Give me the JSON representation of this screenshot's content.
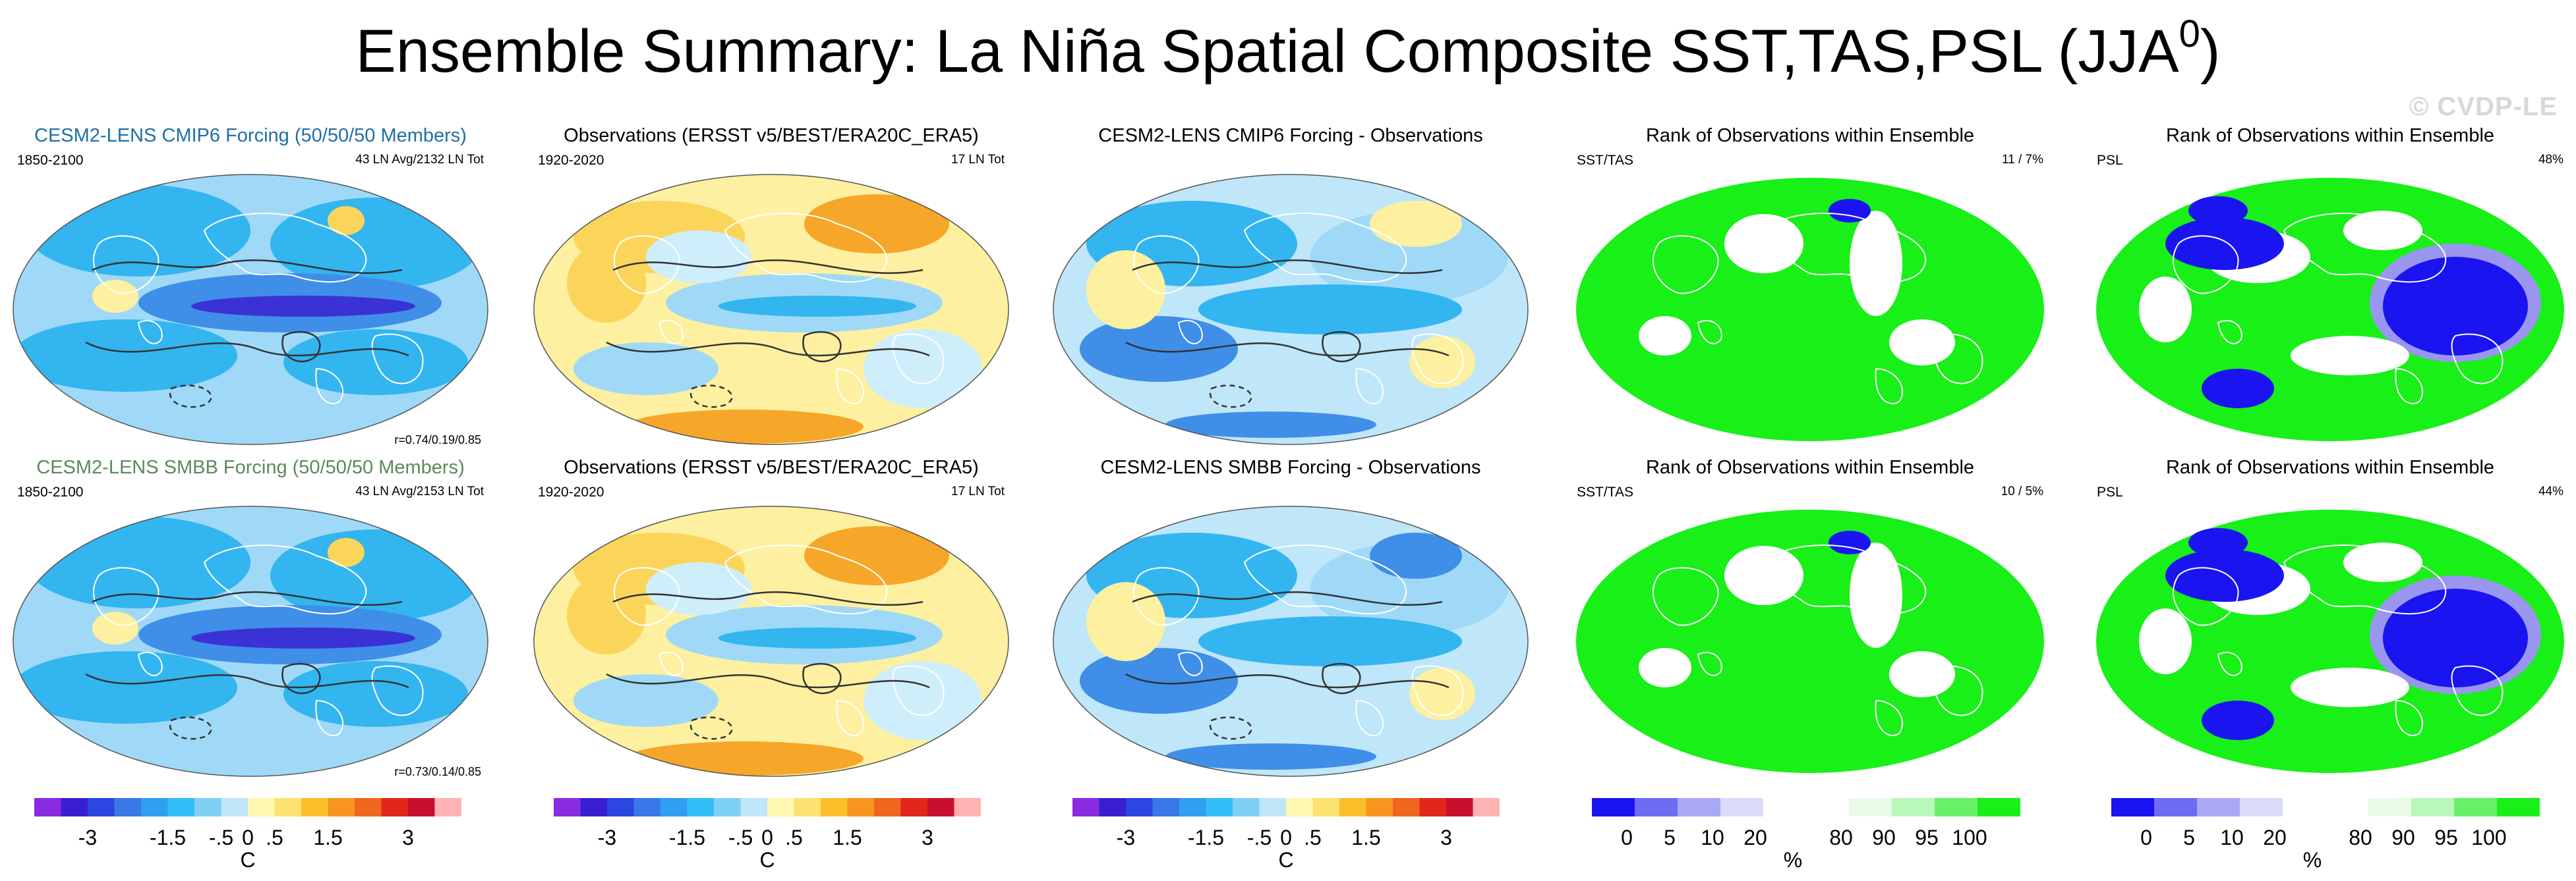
{
  "title": "Ensemble Summary: La Niña Spatial Composite SST,TAS,PSL (JJA",
  "title_sup": "0",
  "title_close": ")",
  "watermark": "© CVDP-LE",
  "colors": {
    "dark_blue": "#3b32d6",
    "mid_blue": "#3f8ee8",
    "blue": "#33b5f0",
    "light_blue": "#9fd9f7",
    "pale_blue": "#cfeefc",
    "pale_yellow": "#fdf0a0",
    "yellow": "#fbd55a",
    "orange": "#f6a628",
    "red": "#e8532a",
    "green": "#18f018",
    "rank_blue": "#1a14f0",
    "rank_lavender": "#9a96f0",
    "title_blue": "#1f6fa6",
    "title_green": "#5a8a5a"
  },
  "panels": [
    {
      "id": "r1c1",
      "title": "CESM2-LENS CMIP6 Forcing (50/50/50 Members)",
      "title_color": "#1f6fa6",
      "left_label": "1850-2100",
      "right_label": "43 LN Avg/2132 LN Tot",
      "corr": "r=0.74/0.19/0.85",
      "kind": "model"
    },
    {
      "id": "r1c2",
      "title": "Observations (ERSST v5/BEST/ERA20C_ERA5)",
      "title_color": "#000000",
      "left_label": "1920-2020",
      "right_label": "17 LN Tot",
      "corr": "",
      "kind": "obs"
    },
    {
      "id": "r1c3",
      "title": "CESM2-LENS CMIP6 Forcing - Observations",
      "title_color": "#000000",
      "left_label": "",
      "right_label": "",
      "corr": "",
      "kind": "diff"
    },
    {
      "id": "r1c4",
      "title": "Rank of Observations within Ensemble",
      "title_color": "#000000",
      "left_label": "SST/TAS",
      "right_label": "11 /   7%",
      "corr": "",
      "kind": "rank_sst"
    },
    {
      "id": "r1c5",
      "title": "Rank of Observations within Ensemble",
      "title_color": "#000000",
      "left_label": "PSL",
      "right_label": "48%",
      "corr": "",
      "kind": "rank_psl"
    },
    {
      "id": "r2c1",
      "title": "CESM2-LENS SMBB Forcing (50/50/50 Members)",
      "title_color": "#5a8a5a",
      "left_label": "1850-2100",
      "right_label": "43 LN Avg/2153 LN Tot",
      "corr": "r=0.73/0.14/0.85",
      "kind": "model"
    },
    {
      "id": "r2c2",
      "title": "Observations (ERSST v5/BEST/ERA20C_ERA5)",
      "title_color": "#000000",
      "left_label": "1920-2020",
      "right_label": "17 LN Tot",
      "corr": "",
      "kind": "obs"
    },
    {
      "id": "r2c3",
      "title": "CESM2-LENS SMBB Forcing - Observations",
      "title_color": "#000000",
      "left_label": "",
      "right_label": "",
      "corr": "",
      "kind": "diff2"
    },
    {
      "id": "r2c4",
      "title": "Rank of Observations within Ensemble",
      "title_color": "#000000",
      "left_label": "SST/TAS",
      "right_label": "10 /   5%",
      "corr": "",
      "kind": "rank_sst"
    },
    {
      "id": "r2c5",
      "title": "Rank of Observations within Ensemble",
      "title_color": "#000000",
      "left_label": "PSL",
      "right_label": "44%",
      "corr": "",
      "kind": "rank_psl2"
    }
  ],
  "chart_data": [
    {
      "type": "heatmap",
      "name": "temperature colorbar",
      "levels": [
        "-4",
        "-3.5",
        "-3",
        "-2.5",
        "-2",
        "-1.5",
        "-1",
        "-.5",
        "0",
        ".5",
        "1",
        "1.5",
        "2",
        "2.5",
        "3",
        "3.5",
        "4"
      ],
      "tick_labels": [
        "-3",
        "-1.5",
        "-.5",
        "0",
        ".5",
        "1.5",
        "3"
      ],
      "colors": [
        "#8a2be2",
        "#3a1fd0",
        "#2c46e0",
        "#3a78e8",
        "#2f9ff0",
        "#33bdf6",
        "#7fd0f5",
        "#bfe6f9",
        "#fff7b0",
        "#fde172",
        "#fbbf2c",
        "#f79520",
        "#f0661e",
        "#e2261c",
        "#c8102e",
        "#ffb2b2"
      ],
      "unit": "C"
    },
    {
      "type": "heatmap",
      "name": "rank colorbar",
      "tick_labels": [
        "0",
        "5",
        "10",
        "20",
        "80",
        "90",
        "95",
        "100"
      ],
      "colors": [
        "#1a14f0",
        "#6e6cf2",
        "#a9a8f5",
        "#dcdcfa",
        "#ffffff",
        "#ffffff",
        "#e8fce8",
        "#b8f8b8",
        "#68f068",
        "#18f018"
      ],
      "unit": "%"
    }
  ]
}
